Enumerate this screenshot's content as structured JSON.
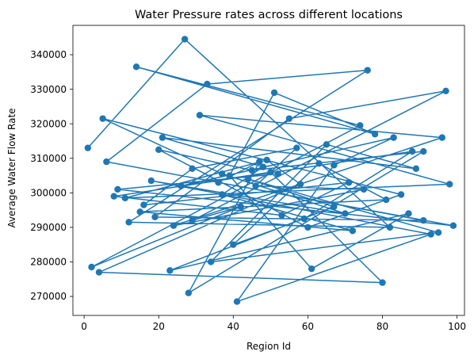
{
  "chart_data": {
    "type": "line",
    "title": "Water Pressure rates across different locations",
    "xlabel": "Region Id",
    "ylabel": "Average Water Flow Rate",
    "xlim": [
      -3,
      102
    ],
    "ylim": [
      264500,
      348500
    ],
    "xticks": [
      0,
      20,
      40,
      60,
      80,
      100
    ],
    "yticks": [
      270000,
      280000,
      290000,
      300000,
      310000,
      320000,
      330000,
      340000
    ],
    "xtick_labels": [
      "0",
      "20",
      "40",
      "60",
      "80",
      "100"
    ],
    "ytick_labels": [
      "270000",
      "280000",
      "290000",
      "300000",
      "310000",
      "320000",
      "330000",
      "340000"
    ],
    "grid": false,
    "markers": true,
    "series": [
      {
        "color": "#1f77b4",
        "x": [
          1,
          27,
          82,
          12,
          76,
          33,
          6,
          91,
          19,
          55,
          97,
          29,
          42,
          2,
          74,
          14,
          78,
          51,
          39,
          61,
          87,
          23,
          67,
          44,
          95,
          34,
          65,
          89,
          21,
          48,
          37,
          72,
          15,
          81,
          63,
          40,
          59,
          88,
          8,
          53,
          71,
          16,
          29,
          57,
          46,
          75,
          24,
          96,
          31,
          98,
          11,
          49,
          58,
          4,
          80,
          50,
          26,
          83,
          67,
          41,
          93,
          18,
          70,
          37,
          5,
          85,
          60,
          20,
          45,
          91,
          28,
          47,
          36,
          99,
          9,
          52
        ],
        "y": [
          313000,
          344500,
          290000,
          291500,
          335500,
          331500,
          309000,
          292000,
          293000,
          321500,
          329500,
          292000,
          296000,
          278500,
          319500,
          336500,
          317000,
          329000,
          305000,
          278000,
          294000,
          277500,
          296000,
          304000,
          288500,
          280000,
          314000,
          307000,
          316000,
          307500,
          299500,
          289000,
          294500,
          298000,
          308500,
          285000,
          292500,
          312000,
          299000,
          293500,
          303000,
          296500,
          307000,
          313000,
          302000,
          301000,
          290500,
          316000,
          322500,
          302500,
          298500,
          309500,
          302500,
          277000,
          274000,
          306000,
          302000,
          316000,
          308000,
          268500,
          288000,
          303500,
          294000,
          305500,
          321500,
          299500,
          290000,
          312500,
          306500,
          312000,
          271000,
          309000,
          303000,
          290500,
          301000,
          305500
        ]
      }
    ]
  }
}
